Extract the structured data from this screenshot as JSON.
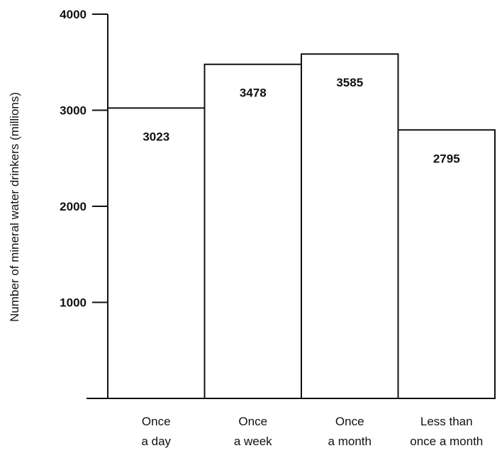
{
  "chart_data": {
    "type": "bar",
    "categories": [
      [
        "Once",
        "a day"
      ],
      [
        "Once",
        "a week"
      ],
      [
        "Once",
        "a month"
      ],
      [
        "Less than",
        "once a month"
      ]
    ],
    "values": [
      3023,
      3478,
      3585,
      2795
    ],
    "value_labels": [
      "3023",
      "3478",
      "3585",
      "2795"
    ],
    "ylabel": "Number of mineral water drinkers (millions)",
    "xlabel": "",
    "ylim": [
      0,
      4000
    ],
    "yticks": [
      1000,
      2000,
      3000,
      4000
    ],
    "ytick_labels": [
      "1000",
      "2000",
      "3000",
      "4000"
    ],
    "grid": false,
    "bar_fill": "#ffffff",
    "bar_stroke": "#111111"
  }
}
